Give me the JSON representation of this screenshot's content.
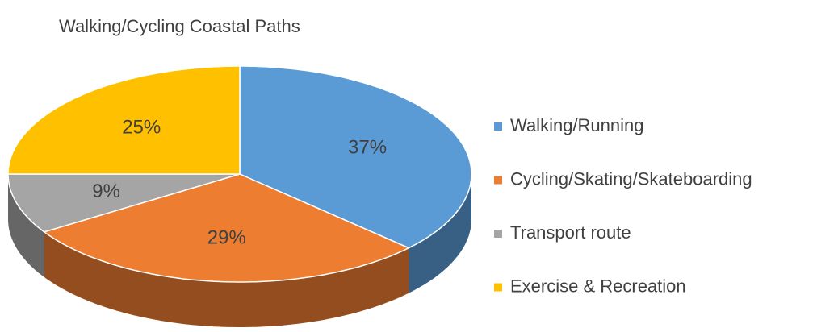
{
  "chart_data": {
    "type": "pie",
    "title": "Walking/Cycling Coastal Paths",
    "categories": [
      "Walking/Running",
      "Cycling/Skating/Skateboarding",
      "Transport route",
      "Exercise & Recreation"
    ],
    "values": [
      37,
      29,
      9,
      25
    ],
    "value_labels": [
      "37%",
      "29%",
      "9%",
      "25%"
    ],
    "colors": [
      "#5b9bd5",
      "#ed7d31",
      "#a5a5a5",
      "#ffc000"
    ],
    "legend": "right"
  }
}
